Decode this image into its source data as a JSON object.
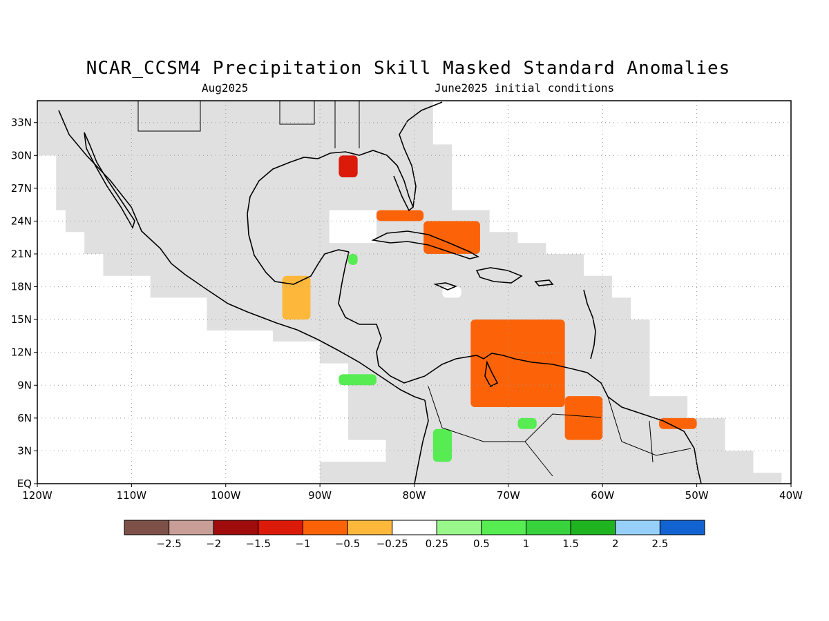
{
  "title": "NCAR_CCSM4 Precipitation Skill Masked Standard Anomalies",
  "subtitle_left": "Aug2025",
  "subtitle_right": "June2025 initial conditions",
  "map": {
    "lat_labels": [
      "EQ",
      "3N",
      "6N",
      "9N",
      "12N",
      "15N",
      "18N",
      "21N",
      "24N",
      "27N",
      "30N",
      "33N"
    ],
    "lon_labels": [
      "120W",
      "110W",
      "100W",
      "90W",
      "80W",
      "70W",
      "60W",
      "50W",
      "40W"
    ],
    "lat_range": [
      0,
      35
    ],
    "lon_range": [
      -120,
      -40
    ],
    "masked_color": "#e0e0e0",
    "grid": "dotted"
  },
  "colorbar": {
    "colors": [
      "#7d5148",
      "#c89e96",
      "#a00b0b",
      "#dc1a0a",
      "#fc6308",
      "#fdb83c",
      "#ffffff",
      "#9af78c",
      "#56ec52",
      "#37d23c",
      "#1fb41f",
      "#96d0fa",
      "#1263d2"
    ],
    "labels": [
      "−2.5",
      "−2",
      "−1.5",
      "−1",
      "−0.5",
      "−0.25",
      "0.25",
      "0.5",
      "1",
      "1.5",
      "2",
      "2.5"
    ]
  },
  "anomaly_regions": [
    {
      "name": "northern-gulf",
      "level": "-1.5",
      "lon": [
        -88,
        -86
      ],
      "lat": [
        28,
        30
      ]
    },
    {
      "name": "florida-straits",
      "level": "-1",
      "lon": [
        -84,
        -79
      ],
      "lat": [
        24,
        25
      ]
    },
    {
      "name": "bahamas-cuba",
      "level": "-1",
      "lon": [
        -79,
        -73
      ],
      "lat": [
        21,
        24
      ]
    },
    {
      "name": "jamaica",
      "level": "-0.25",
      "lon": [
        -77,
        -75
      ],
      "lat": [
        17,
        18
      ]
    },
    {
      "name": "bay-of-campeche",
      "level": "-0.5",
      "lon": [
        -94,
        -91
      ],
      "lat": [
        15,
        19
      ]
    },
    {
      "name": "venezuela-caribbean",
      "level": "-1",
      "lon": [
        -74,
        -64
      ],
      "lat": [
        7,
        15
      ]
    },
    {
      "name": "orinoco",
      "level": "-1",
      "lon": [
        -64,
        -60
      ],
      "lat": [
        4,
        8
      ]
    },
    {
      "name": "suriname-coast",
      "level": "-1",
      "lon": [
        -54,
        -50
      ],
      "lat": [
        5,
        6
      ]
    },
    {
      "name": "yucatan-green",
      "level": "0.5",
      "lon": [
        -87,
        -86
      ],
      "lat": [
        20,
        21
      ]
    },
    {
      "name": "costa-rica-pacific",
      "level": "0.5",
      "lon": [
        -88,
        -84
      ],
      "lat": [
        9,
        10
      ]
    },
    {
      "name": "colombia-pacific",
      "level": "0.5",
      "lon": [
        -78,
        -76
      ],
      "lat": [
        2,
        5
      ]
    },
    {
      "name": "colombia-inland",
      "level": "0.5",
      "lon": [
        -69,
        -67
      ],
      "lat": [
        5,
        6
      ]
    }
  ]
}
